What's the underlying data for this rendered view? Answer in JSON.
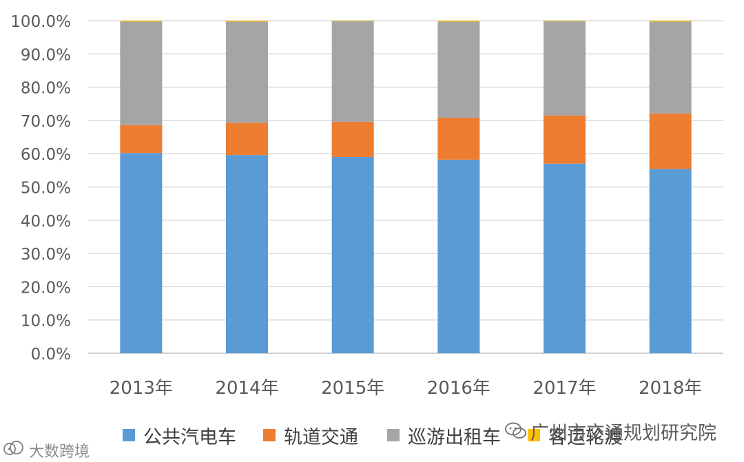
{
  "chart_data": {
    "type": "bar",
    "stacked": true,
    "categories": [
      "2013年",
      "2014年",
      "2015年",
      "2016年",
      "2017年",
      "2018年"
    ],
    "series": [
      {
        "name": "公共汽电车",
        "color": "#5B9BD5",
        "values": [
          60.2,
          59.6,
          59.0,
          58.2,
          57.0,
          55.4
        ]
      },
      {
        "name": "轨道交通",
        "color": "#ED7D31",
        "values": [
          8.4,
          9.7,
          10.6,
          12.6,
          14.5,
          16.7
        ]
      },
      {
        "name": "巡游出租车",
        "color": "#A5A5A5",
        "values": [
          31.1,
          30.4,
          30.2,
          28.9,
          28.3,
          27.6
        ]
      },
      {
        "name": "客运轮渡",
        "color": "#FFC000",
        "values": [
          0.3,
          0.3,
          0.2,
          0.3,
          0.2,
          0.3
        ]
      }
    ],
    "yticks": [
      "0.0%",
      "10.0%",
      "20.0%",
      "30.0%",
      "40.0%",
      "50.0%",
      "60.0%",
      "70.0%",
      "80.0%",
      "90.0%",
      "100.0%"
    ],
    "ylim": [
      0,
      100
    ],
    "grid": true,
    "legend_position": "bottom"
  },
  "legend": {
    "items": [
      {
        "label": "公共汽电车",
        "color": "#5B9BD5"
      },
      {
        "label": "轨道交通",
        "color": "#ED7D31"
      },
      {
        "label": "巡游出租车",
        "color": "#A5A5A5"
      },
      {
        "label": "客运轮渡",
        "color": "#FFC000"
      }
    ]
  },
  "watermarks": {
    "top_right": "广州市交通规划研究院",
    "bottom_left": "大数跨境",
    "wechat_icon": "wechat-icon",
    "weibo_icon": "weibo-icon"
  }
}
